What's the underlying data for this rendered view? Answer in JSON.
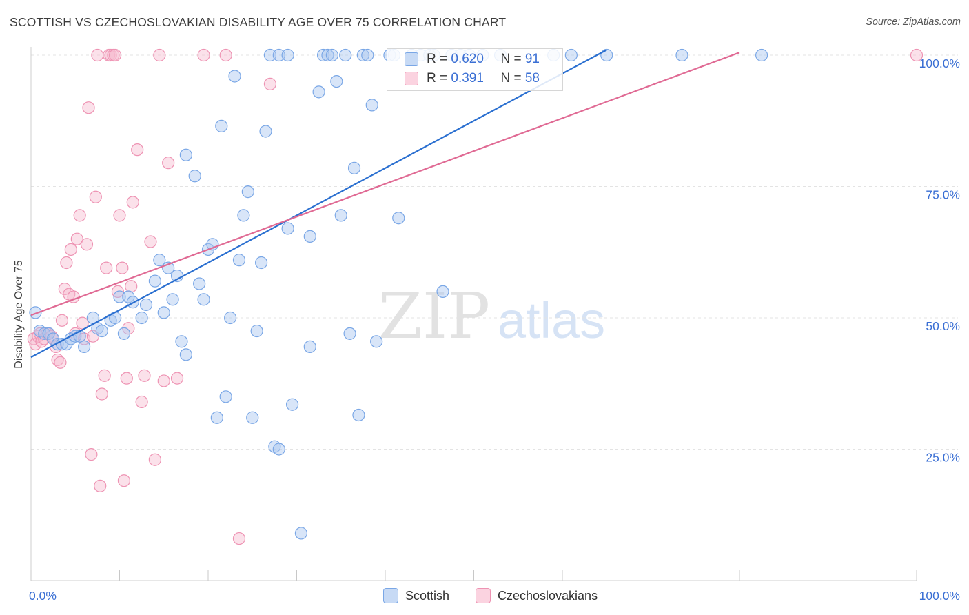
{
  "header": {
    "title": "SCOTTISH VS CZECHOSLOVAKIAN DISABILITY AGE OVER 75 CORRELATION CHART",
    "source": "Source: ZipAtlas.com"
  },
  "watermark": {
    "zip": "ZIP",
    "atlas": "atlas"
  },
  "colors": {
    "scottish_fill": "#a9c6ef",
    "scottish_stroke": "#7aa7e6",
    "scottish_line": "#2a6fd0",
    "czech_fill": "#f7bcd0",
    "czech_stroke": "#ee93b3",
    "czech_line": "#e06a94",
    "tick_label": "#3a6fd4",
    "grid": "#e3e3e3"
  },
  "legend_top": {
    "rows": [
      {
        "r_label": "R = ",
        "r_value": "0.620",
        "n_label": "N = ",
        "n_value": "91"
      },
      {
        "r_label": "R = ",
        "r_value": "0.391",
        "n_label": "N = ",
        "n_value": "58"
      }
    ]
  },
  "chart_data": {
    "type": "scatter",
    "title": "SCOTTISH VS CZECHOSLOVAKIAN DISABILITY AGE OVER 75 CORRELATION CHART",
    "xlabel": "",
    "ylabel": "Disability Age Over 75",
    "xlim": [
      0,
      100
    ],
    "ylim": [
      0,
      100
    ],
    "x_tick_labels": [
      "0.0%",
      "100.0%"
    ],
    "y_ticks": [
      25,
      50,
      75,
      100
    ],
    "y_tick_labels": [
      "25.0%",
      "50.0%",
      "75.0%",
      "100.0%"
    ],
    "grid": true,
    "legend_position": "bottom",
    "series": [
      {
        "name": "Scottish",
        "r": 0.62,
        "n": 91,
        "trend": {
          "x": [
            0,
            65
          ],
          "y": [
            42.5,
            101
          ]
        },
        "points": [
          [
            0.5,
            51
          ],
          [
            1,
            47.5
          ],
          [
            1.5,
            47
          ],
          [
            2,
            47
          ],
          [
            2.5,
            46
          ],
          [
            3,
            45
          ],
          [
            3.5,
            45
          ],
          [
            4,
            45
          ],
          [
            4.5,
            46
          ],
          [
            5,
            46.5
          ],
          [
            5.5,
            46.5
          ],
          [
            6,
            44.5
          ],
          [
            7,
            50
          ],
          [
            7.5,
            48
          ],
          [
            8,
            47.5
          ],
          [
            9,
            49.5
          ],
          [
            9.5,
            50
          ],
          [
            10,
            54
          ],
          [
            10.5,
            47
          ],
          [
            11,
            54
          ],
          [
            11.5,
            53
          ],
          [
            12.5,
            50
          ],
          [
            13,
            52.5
          ],
          [
            14,
            57
          ],
          [
            14.5,
            61
          ],
          [
            15,
            51
          ],
          [
            15.5,
            59.5
          ],
          [
            16,
            53.5
          ],
          [
            16.5,
            58
          ],
          [
            17,
            45.5
          ],
          [
            17.5,
            81
          ],
          [
            17.5,
            43
          ],
          [
            18.5,
            77
          ],
          [
            19,
            56.5
          ],
          [
            19.5,
            53.5
          ],
          [
            20,
            63
          ],
          [
            20.5,
            64
          ],
          [
            21,
            31
          ],
          [
            21.5,
            86.5
          ],
          [
            22,
            35
          ],
          [
            22.5,
            50
          ],
          [
            23,
            96
          ],
          [
            23.5,
            61
          ],
          [
            24,
            69.5
          ],
          [
            24.5,
            74
          ],
          [
            25,
            31
          ],
          [
            25.5,
            47.5
          ],
          [
            26,
            60.5
          ],
          [
            26.5,
            85.5
          ],
          [
            27,
            100
          ],
          [
            27.5,
            25.5
          ],
          [
            28,
            100
          ],
          [
            28,
            25
          ],
          [
            29,
            100
          ],
          [
            29,
            67
          ],
          [
            29.5,
            33.5
          ],
          [
            30.5,
            9
          ],
          [
            31.5,
            65.5
          ],
          [
            31.5,
            44.5
          ],
          [
            32.5,
            93
          ],
          [
            33,
            100
          ],
          [
            33.5,
            100
          ],
          [
            34,
            100
          ],
          [
            34.5,
            95
          ],
          [
            35,
            69.5
          ],
          [
            35.5,
            100
          ],
          [
            36,
            47
          ],
          [
            36.5,
            78.5
          ],
          [
            37,
            31.5
          ],
          [
            37.5,
            100
          ],
          [
            38,
            100
          ],
          [
            38.5,
            90.5
          ],
          [
            39,
            45.5
          ],
          [
            40.5,
            100
          ],
          [
            41,
            100
          ],
          [
            41.5,
            69
          ],
          [
            43,
            100
          ],
          [
            44,
            100
          ],
          [
            45,
            100
          ],
          [
            45.5,
            100
          ],
          [
            46.5,
            55
          ],
          [
            47.5,
            100
          ],
          [
            48.5,
            100
          ],
          [
            49.5,
            100
          ],
          [
            51,
            100
          ],
          [
            53,
            100
          ],
          [
            59,
            100
          ],
          [
            61,
            100
          ],
          [
            65,
            100
          ],
          [
            73.5,
            100
          ],
          [
            82.5,
            100
          ]
        ]
      },
      {
        "name": "Czechoslovakians",
        "r": 0.391,
        "n": 58,
        "trend": {
          "x": [
            0,
            80
          ],
          "y": [
            50.5,
            100.5
          ]
        },
        "points": [
          [
            0.3,
            46
          ],
          [
            0.5,
            45
          ],
          [
            0.8,
            46.5
          ],
          [
            1,
            47
          ],
          [
            1.2,
            45.5
          ],
          [
            1.5,
            46
          ],
          [
            1.8,
            47
          ],
          [
            2,
            47
          ],
          [
            2.3,
            46.5
          ],
          [
            2.5,
            46
          ],
          [
            2.8,
            44.5
          ],
          [
            3,
            42
          ],
          [
            3.3,
            41.5
          ],
          [
            3.5,
            49.5
          ],
          [
            3.8,
            55.5
          ],
          [
            4,
            60.5
          ],
          [
            4.3,
            54.5
          ],
          [
            4.5,
            63
          ],
          [
            4.8,
            54
          ],
          [
            5,
            47
          ],
          [
            5.2,
            65
          ],
          [
            5.5,
            69.5
          ],
          [
            5.8,
            49
          ],
          [
            6,
            46
          ],
          [
            6.3,
            64
          ],
          [
            6.5,
            90
          ],
          [
            6.8,
            24
          ],
          [
            7,
            46.5
          ],
          [
            7.3,
            73
          ],
          [
            7.5,
            100
          ],
          [
            7.8,
            18
          ],
          [
            8,
            35.5
          ],
          [
            8.3,
            39
          ],
          [
            8.5,
            59.5
          ],
          [
            8.8,
            100
          ],
          [
            9,
            100
          ],
          [
            9.3,
            100
          ],
          [
            9.5,
            100
          ],
          [
            9.8,
            55
          ],
          [
            10,
            69.5
          ],
          [
            10.3,
            59.5
          ],
          [
            10.5,
            19
          ],
          [
            10.8,
            38.5
          ],
          [
            11,
            48
          ],
          [
            11.3,
            56
          ],
          [
            11.5,
            72
          ],
          [
            12,
            82
          ],
          [
            12.5,
            34
          ],
          [
            12.8,
            39
          ],
          [
            13.5,
            64.5
          ],
          [
            14,
            23
          ],
          [
            14.5,
            100
          ],
          [
            15,
            38
          ],
          [
            15.5,
            79.5
          ],
          [
            16.5,
            38.5
          ],
          [
            19.5,
            100
          ],
          [
            22,
            100
          ],
          [
            23.5,
            8
          ],
          [
            27,
            94.5
          ],
          [
            100,
            100
          ]
        ]
      }
    ]
  },
  "legend_bottom": {
    "items": [
      {
        "label": "Scottish"
      },
      {
        "label": "Czechoslovakians"
      }
    ]
  }
}
